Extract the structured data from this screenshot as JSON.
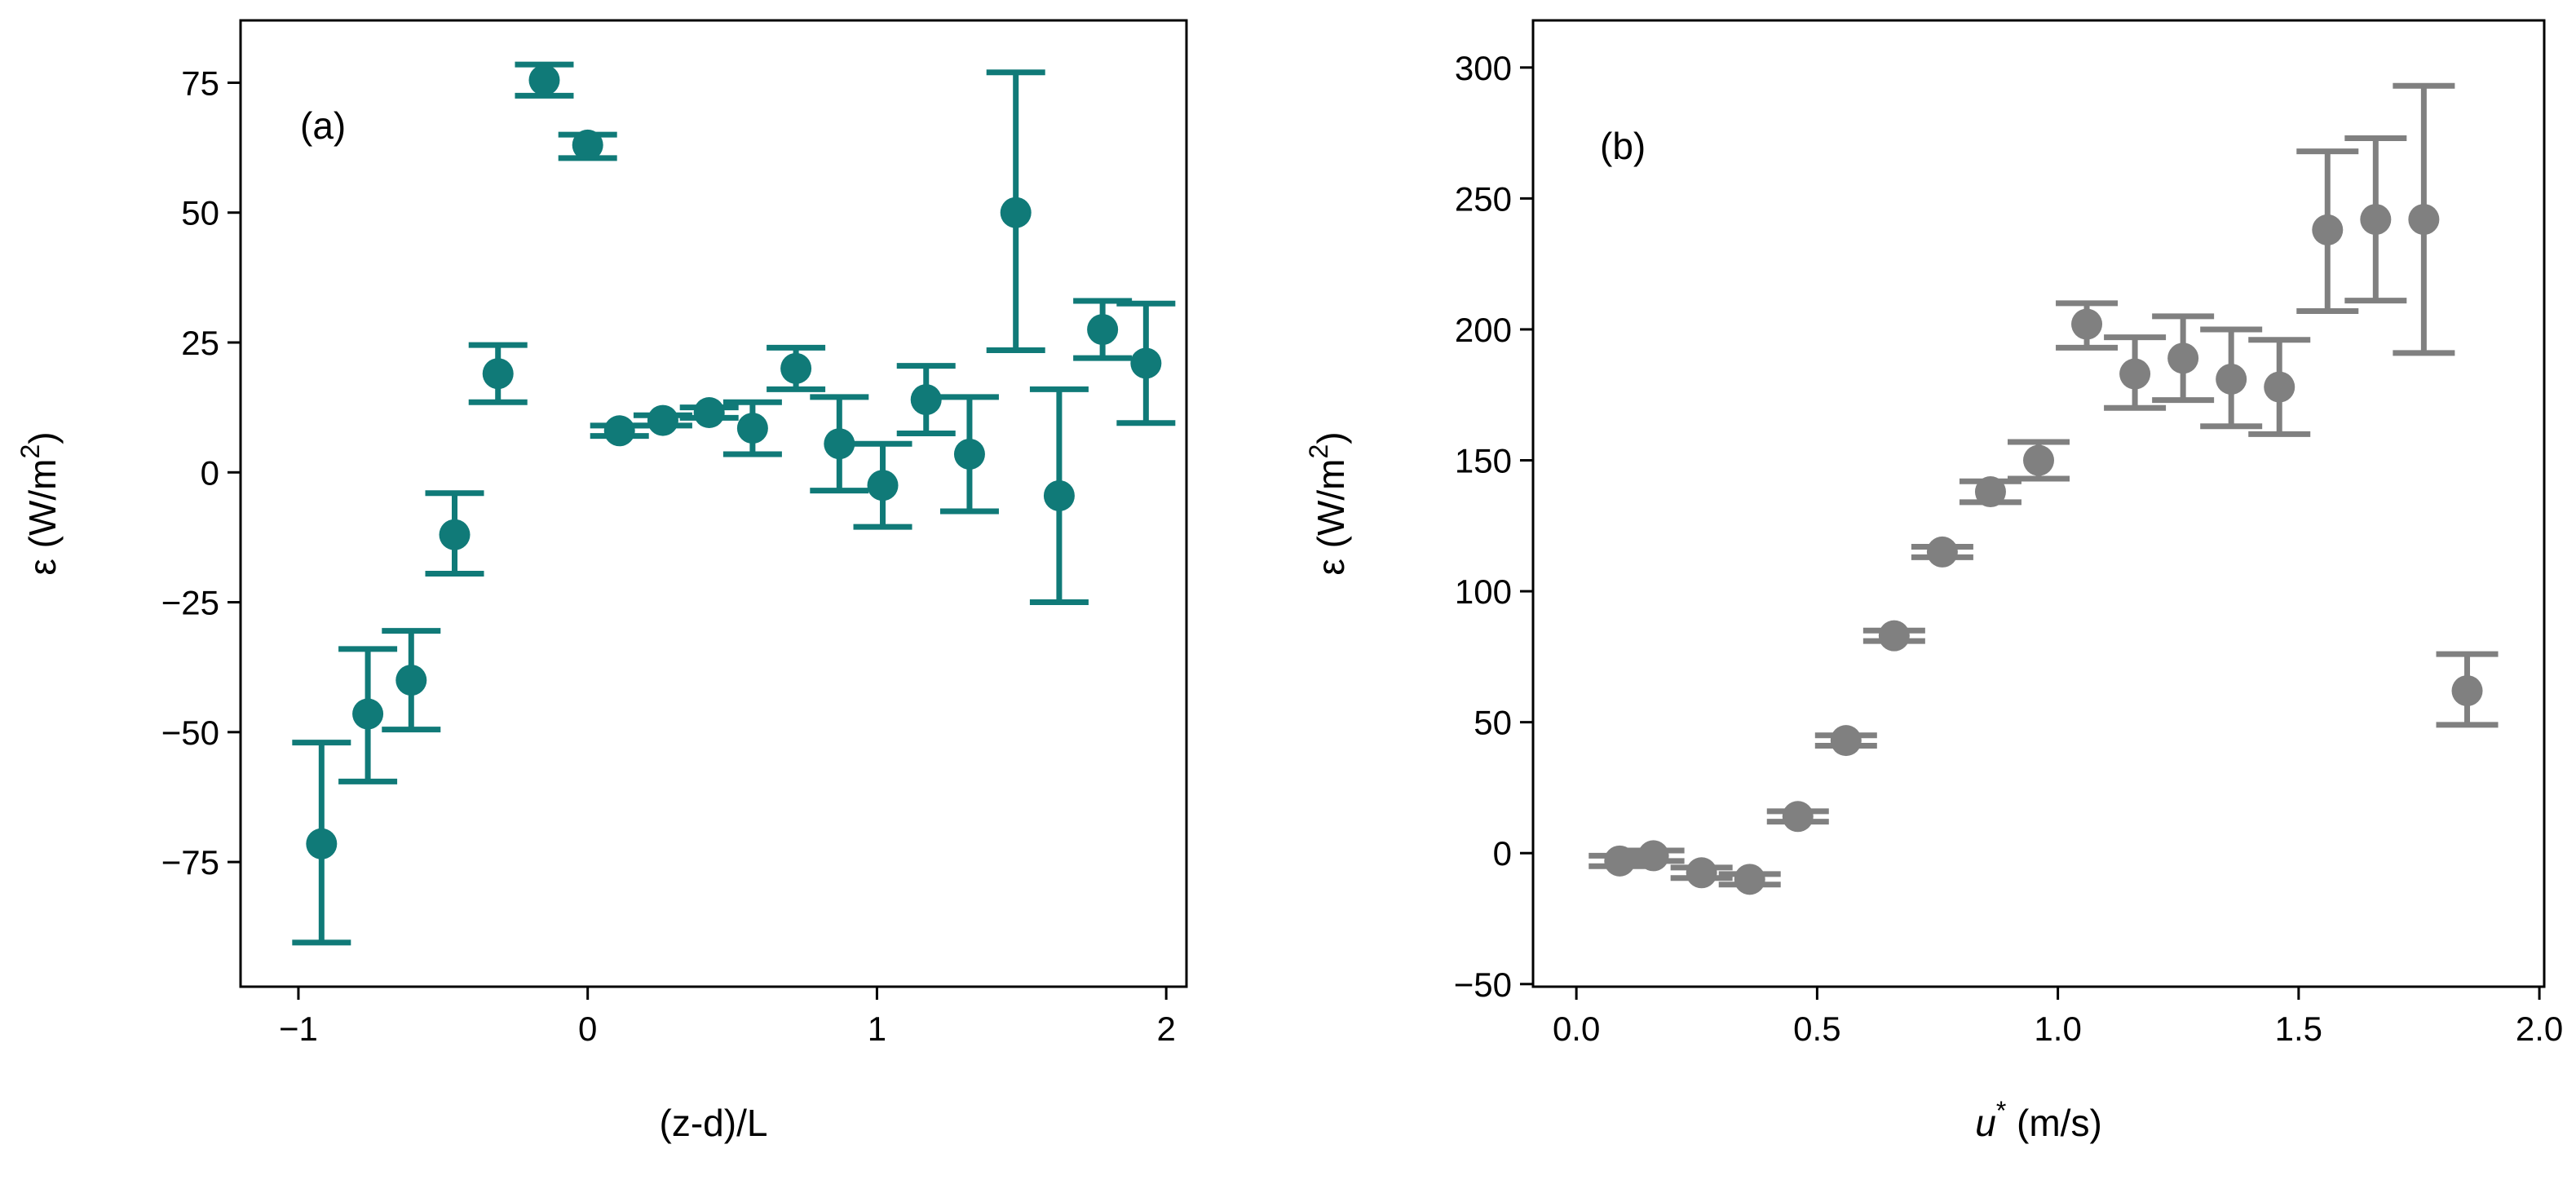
{
  "chart_data": [
    {
      "type": "scatter",
      "panel_label": "(a)",
      "color": "#107a78",
      "xlabel": "(z-d)/L",
      "ylabel_prefix": "ε (W/m",
      "ylabel_sup": "2",
      "ylabel_suffix": ")",
      "xlim": [
        -1.2,
        2.07
      ],
      "ylim": [
        -99,
        87
      ],
      "xticks": [
        -1,
        0,
        1,
        2
      ],
      "xtick_labels": [
        "−1",
        "0",
        "1",
        "2"
      ],
      "yticks": [
        75,
        50,
        25,
        0,
        -25,
        -50,
        -75
      ],
      "ytick_labels": [
        "75",
        "50",
        "25",
        "0",
        "−25",
        "−50",
        "−75"
      ],
      "points": [
        {
          "x": -0.92,
          "y": -71.5,
          "ylo": -90.5,
          "yhi": -52.0
        },
        {
          "x": -0.76,
          "y": -46.5,
          "ylo": -59.5,
          "yhi": -34.0
        },
        {
          "x": -0.61,
          "y": -40.0,
          "ylo": -49.5,
          "yhi": -30.5
        },
        {
          "x": -0.46,
          "y": -12.0,
          "ylo": -19.5,
          "yhi": -4.0
        },
        {
          "x": -0.31,
          "y": 19.0,
          "ylo": 13.5,
          "yhi": 24.5
        },
        {
          "x": -0.15,
          "y": 75.5,
          "ylo": 72.5,
          "yhi": 78.5
        },
        {
          "x": 0.0,
          "y": 63.0,
          "ylo": 60.5,
          "yhi": 65.0
        },
        {
          "x": 0.11,
          "y": 8.0,
          "ylo": 7.0,
          "yhi": 9.0
        },
        {
          "x": 0.26,
          "y": 10.0,
          "ylo": 9.0,
          "yhi": 11.0
        },
        {
          "x": 0.42,
          "y": 11.5,
          "ylo": 10.5,
          "yhi": 12.5
        },
        {
          "x": 0.57,
          "y": 8.5,
          "ylo": 3.5,
          "yhi": 13.5
        },
        {
          "x": 0.72,
          "y": 20.0,
          "ylo": 16.0,
          "yhi": 24.0
        },
        {
          "x": 0.87,
          "y": 5.5,
          "ylo": -3.5,
          "yhi": 14.5
        },
        {
          "x": 1.02,
          "y": -2.5,
          "ylo": -10.5,
          "yhi": 5.5
        },
        {
          "x": 1.17,
          "y": 14.0,
          "ylo": 7.5,
          "yhi": 20.5
        },
        {
          "x": 1.32,
          "y": 3.5,
          "ylo": -7.5,
          "yhi": 14.5
        },
        {
          "x": 1.48,
          "y": 50.0,
          "ylo": 23.5,
          "yhi": 77.0
        },
        {
          "x": 1.63,
          "y": -4.5,
          "ylo": -25.0,
          "yhi": 16.0
        },
        {
          "x": 1.78,
          "y": 27.5,
          "ylo": 22.0,
          "yhi": 33.0
        },
        {
          "x": 1.93,
          "y": 21.0,
          "ylo": 9.5,
          "yhi": 32.5
        }
      ]
    },
    {
      "type": "scatter",
      "panel_label": "(b)",
      "color": "#808080",
      "xlabel_var": "u",
      "xlabel_sup": "*",
      "xlabel_suffix": " (m/s)",
      "ylabel_prefix": "ε (W/m",
      "ylabel_sup": "2",
      "ylabel_suffix": ")",
      "xlim": [
        -0.09,
        2.01
      ],
      "ylim": [
        -51,
        318
      ],
      "xticks": [
        0.0,
        0.5,
        1.0,
        1.5,
        2.0
      ],
      "xtick_labels": [
        "0.0",
        "0.5",
        "1.0",
        "1.5",
        "2.0"
      ],
      "yticks": [
        300,
        250,
        200,
        150,
        100,
        50,
        0,
        -50
      ],
      "ytick_labels": [
        "300",
        "250",
        "200",
        "150",
        "100",
        "50",
        "0",
        "−50"
      ],
      "points": [
        {
          "x": 0.09,
          "y": -3.0,
          "ylo": -5.0,
          "yhi": -1.0
        },
        {
          "x": 0.16,
          "y": -1.0,
          "ylo": -3.0,
          "yhi": 1.0
        },
        {
          "x": 0.26,
          "y": -7.5,
          "ylo": -9.5,
          "yhi": -5.5
        },
        {
          "x": 0.36,
          "y": -10.0,
          "ylo": -12.0,
          "yhi": -8.0
        },
        {
          "x": 0.46,
          "y": 14.0,
          "ylo": 12.0,
          "yhi": 16.0
        },
        {
          "x": 0.56,
          "y": 43.0,
          "ylo": 41.0,
          "yhi": 45.0
        },
        {
          "x": 0.66,
          "y": 83.0,
          "ylo": 81.0,
          "yhi": 85.0
        },
        {
          "x": 0.76,
          "y": 115.0,
          "ylo": 113.0,
          "yhi": 117.0
        },
        {
          "x": 0.86,
          "y": 138.0,
          "ylo": 134.0,
          "yhi": 142.0
        },
        {
          "x": 0.96,
          "y": 150.0,
          "ylo": 143.0,
          "yhi": 157.0
        },
        {
          "x": 1.06,
          "y": 202.0,
          "ylo": 193.0,
          "yhi": 210.0
        },
        {
          "x": 1.16,
          "y": 183.0,
          "ylo": 170.0,
          "yhi": 197.0
        },
        {
          "x": 1.26,
          "y": 189.0,
          "ylo": 173.0,
          "yhi": 205.0
        },
        {
          "x": 1.36,
          "y": 181.0,
          "ylo": 163.0,
          "yhi": 200.0
        },
        {
          "x": 1.46,
          "y": 178.0,
          "ylo": 160.0,
          "yhi": 196.0
        },
        {
          "x": 1.56,
          "y": 238.0,
          "ylo": 207.0,
          "yhi": 268.0
        },
        {
          "x": 1.66,
          "y": 242.0,
          "ylo": 211.0,
          "yhi": 273.0
        },
        {
          "x": 1.76,
          "y": 242.0,
          "ylo": 191.0,
          "yhi": 293.0
        },
        {
          "x": 1.85,
          "y": 62.0,
          "ylo": 49.0,
          "yhi": 76.0
        }
      ]
    }
  ]
}
